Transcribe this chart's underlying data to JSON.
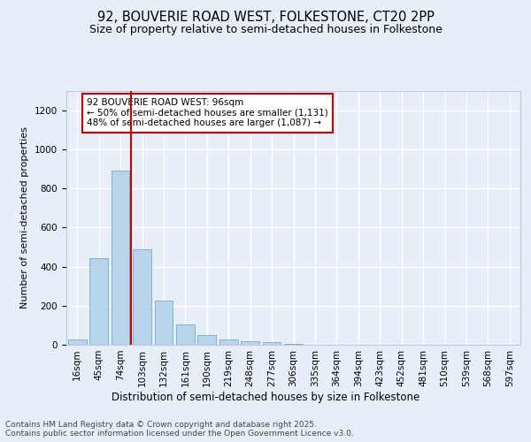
{
  "title1": "92, BOUVERIE ROAD WEST, FOLKESTONE, CT20 2PP",
  "title2": "Size of property relative to semi-detached houses in Folkestone",
  "xlabel": "Distribution of semi-detached houses by size in Folkestone",
  "ylabel": "Number of semi-detached properties",
  "categories": [
    "16sqm",
    "45sqm",
    "74sqm",
    "103sqm",
    "132sqm",
    "161sqm",
    "190sqm",
    "219sqm",
    "248sqm",
    "277sqm",
    "306sqm",
    "335sqm",
    "364sqm",
    "394sqm",
    "423sqm",
    "452sqm",
    "481sqm",
    "510sqm",
    "539sqm",
    "568sqm",
    "597sqm"
  ],
  "values": [
    25,
    445,
    890,
    490,
    225,
    105,
    50,
    25,
    20,
    15,
    5,
    2,
    1,
    0,
    0,
    0,
    0,
    0,
    0,
    0,
    0
  ],
  "bar_color": "#b8d4ea",
  "bar_edge_color": "#7aaac8",
  "vline_color": "#cc0000",
  "annotation_text": "92 BOUVERIE ROAD WEST: 96sqm\n← 50% of semi-detached houses are smaller (1,131)\n48% of semi-detached houses are larger (1,087) →",
  "annotation_box_color": "#cc0000",
  "annotation_text_color": "#000000",
  "ylim": [
    0,
    1300
  ],
  "yticks": [
    0,
    200,
    400,
    600,
    800,
    1000,
    1200
  ],
  "background_color": "#e8eef8",
  "footer_text": "Contains HM Land Registry data © Crown copyright and database right 2025.\nContains public sector information licensed under the Open Government Licence v3.0.",
  "grid_color": "#ffffff",
  "title1_fontsize": 10.5,
  "title2_fontsize": 9,
  "ylabel_fontsize": 8,
  "xlabel_fontsize": 8.5,
  "tick_fontsize": 7.5,
  "footer_fontsize": 6.5
}
